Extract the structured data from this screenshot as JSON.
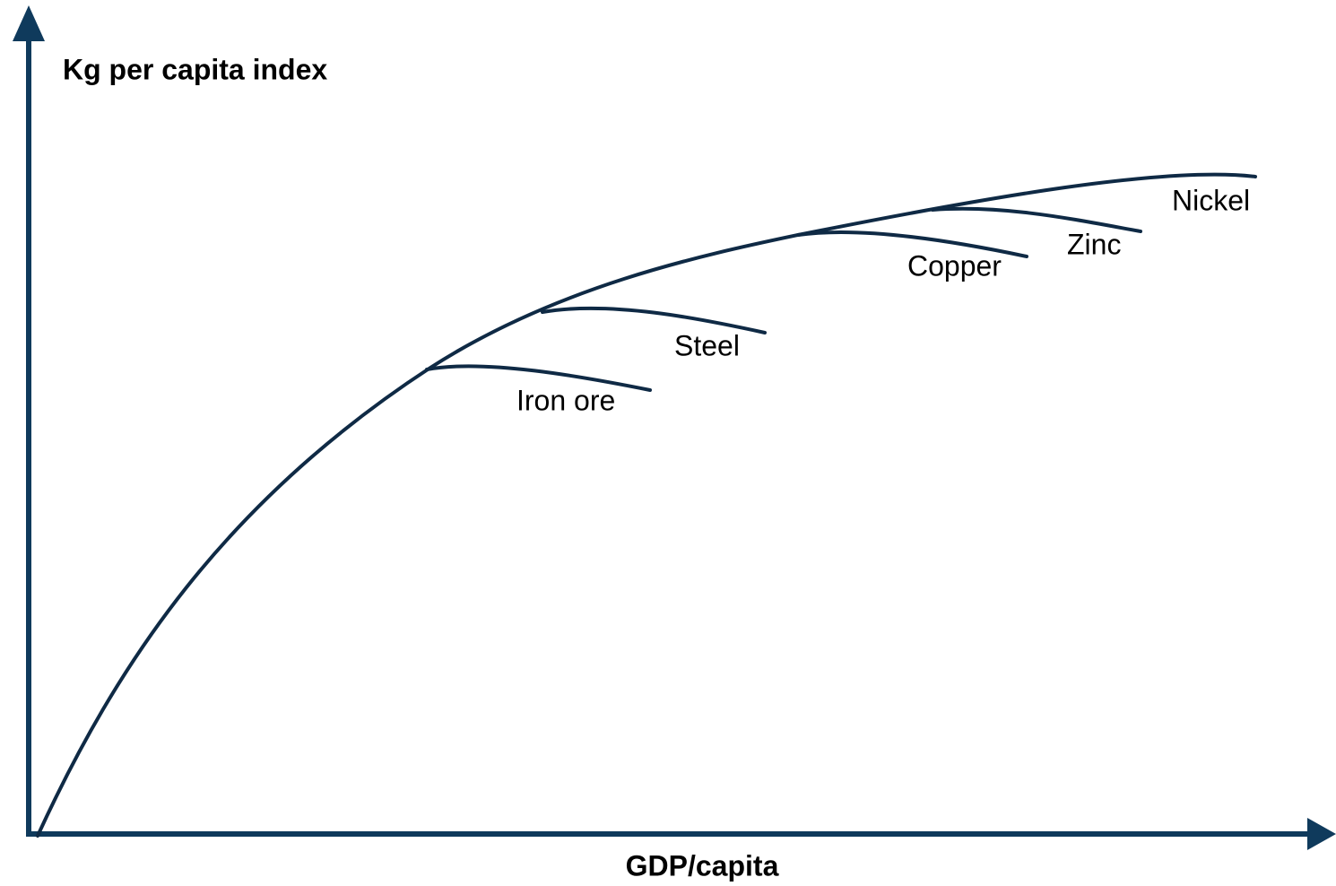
{
  "axes": {
    "y_label": "Kg per capita index",
    "x_label": "GDP/capita"
  },
  "curves": [
    {
      "label": "Iron ore"
    },
    {
      "label": "Steel"
    },
    {
      "label": "Copper"
    },
    {
      "label": "Zinc"
    },
    {
      "label": "Nickel"
    }
  ]
}
